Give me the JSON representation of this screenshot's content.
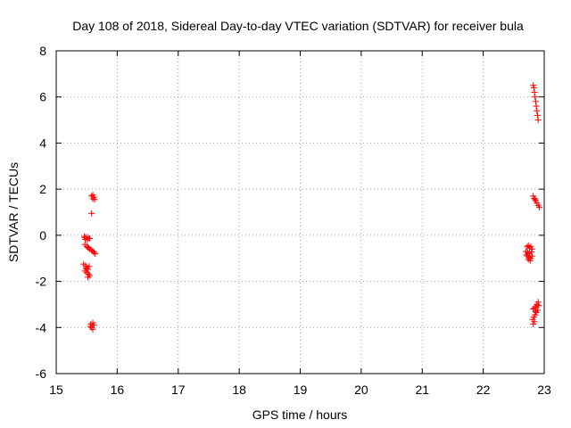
{
  "chart_data": {
    "type": "scatter",
    "title": "Day 108 of 2018, Sidereal Day-to-day VTEC variation (SDTVAR) for receiver bula",
    "xlabel": "GPS time / hours",
    "ylabel": "SDTVAR / TECUs",
    "xlim": [
      15,
      23
    ],
    "ylim": [
      -6,
      8
    ],
    "xticks": [
      "15",
      "16",
      "17",
      "18",
      "19",
      "20",
      "21",
      "22",
      "23"
    ],
    "yticks": [
      "-6",
      "-4",
      "-2",
      "0",
      "2",
      "4",
      "6",
      "8"
    ],
    "grid": true,
    "marker": "plus",
    "series": [
      {
        "name": "SDTVAR",
        "color": "#ff0000",
        "points": [
          [
            15.6,
            1.75
          ],
          [
            15.58,
            1.7
          ],
          [
            15.62,
            1.65
          ],
          [
            15.6,
            1.58
          ],
          [
            15.63,
            1.55
          ],
          [
            15.58,
            0.95
          ],
          [
            15.47,
            -0.1
          ],
          [
            15.5,
            -0.08
          ],
          [
            15.53,
            -0.12
          ],
          [
            15.48,
            -0.18
          ],
          [
            15.51,
            -0.2
          ],
          [
            15.55,
            -0.14
          ],
          [
            15.46,
            -0.05
          ],
          [
            15.47,
            -0.4
          ],
          [
            15.5,
            -0.48
          ],
          [
            15.53,
            -0.55
          ],
          [
            15.55,
            -0.6
          ],
          [
            15.58,
            -0.65
          ],
          [
            15.6,
            -0.7
          ],
          [
            15.62,
            -0.74
          ],
          [
            15.64,
            -0.8
          ],
          [
            15.52,
            -0.52
          ],
          [
            15.45,
            -1.25
          ],
          [
            15.48,
            -1.32
          ],
          [
            15.5,
            -1.4
          ],
          [
            15.52,
            -1.48
          ],
          [
            15.47,
            -1.55
          ],
          [
            15.5,
            -1.62
          ],
          [
            15.53,
            -1.68
          ],
          [
            15.55,
            -1.75
          ],
          [
            15.52,
            -1.82
          ],
          [
            15.49,
            -1.45
          ],
          [
            15.54,
            -1.35
          ],
          [
            15.57,
            -3.85
          ],
          [
            15.6,
            -3.8
          ],
          [
            15.62,
            -3.9
          ],
          [
            15.58,
            -4.0
          ],
          [
            15.6,
            -4.08
          ],
          [
            15.56,
            -3.95
          ],
          [
            22.82,
            6.5
          ],
          [
            22.83,
            6.4
          ],
          [
            22.84,
            6.2
          ],
          [
            22.85,
            6.0
          ],
          [
            22.86,
            5.8
          ],
          [
            22.87,
            5.6
          ],
          [
            22.88,
            5.4
          ],
          [
            22.89,
            5.2
          ],
          [
            22.9,
            5.0
          ],
          [
            22.82,
            1.7
          ],
          [
            22.84,
            1.6
          ],
          [
            22.86,
            1.5
          ],
          [
            22.88,
            1.4
          ],
          [
            22.9,
            1.3
          ],
          [
            22.92,
            1.22
          ],
          [
            22.85,
            1.55
          ],
          [
            22.72,
            -0.5
          ],
          [
            22.74,
            -0.45
          ],
          [
            22.76,
            -0.55
          ],
          [
            22.78,
            -0.48
          ],
          [
            22.8,
            -0.6
          ],
          [
            22.7,
            -0.7
          ],
          [
            22.73,
            -0.75
          ],
          [
            22.76,
            -0.8
          ],
          [
            22.79,
            -0.72
          ],
          [
            22.72,
            -0.9
          ],
          [
            22.75,
            -0.95
          ],
          [
            22.78,
            -1.0
          ],
          [
            22.74,
            -1.05
          ],
          [
            22.77,
            -1.1
          ],
          [
            22.71,
            -0.85
          ],
          [
            22.8,
            -0.9
          ],
          [
            22.9,
            -2.9
          ],
          [
            22.88,
            -3.0
          ],
          [
            22.86,
            -3.1
          ],
          [
            22.84,
            -3.15
          ],
          [
            22.82,
            -3.2
          ],
          [
            22.89,
            -3.25
          ],
          [
            22.87,
            -3.35
          ],
          [
            22.85,
            -3.45
          ],
          [
            22.83,
            -3.55
          ],
          [
            22.81,
            -3.65
          ],
          [
            22.84,
            -3.75
          ],
          [
            22.82,
            -3.85
          ],
          [
            22.91,
            -3.05
          ],
          [
            22.86,
            -3.3
          ]
        ]
      }
    ]
  }
}
